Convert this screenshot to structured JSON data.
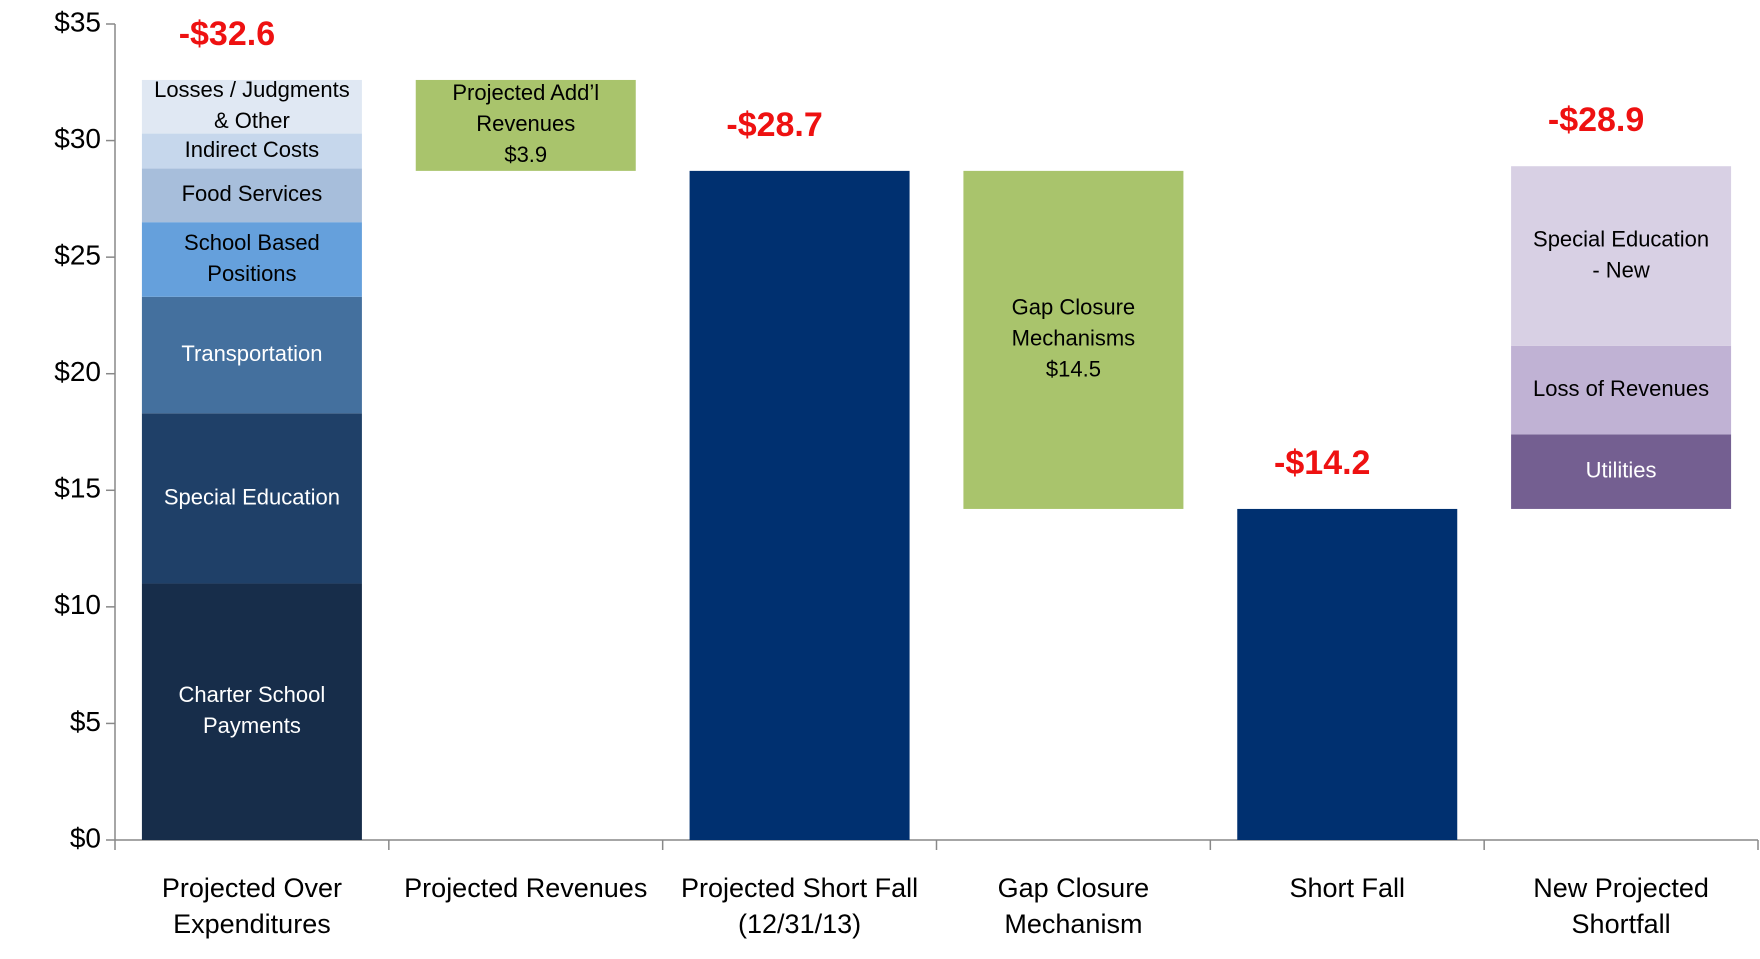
{
  "chart_data": {
    "type": "waterfall",
    "ylim": [
      0,
      35
    ],
    "yticks": [
      {
        "value": 0,
        "label": "$0"
      },
      {
        "value": 5,
        "label": "$5"
      },
      {
        "value": 10,
        "label": "$10"
      },
      {
        "value": 15,
        "label": "$15"
      },
      {
        "value": 20,
        "label": "$20"
      },
      {
        "value": 25,
        "label": "$25"
      },
      {
        "value": 30,
        "label": "$30"
      },
      {
        "value": 35,
        "label": "$35"
      }
    ],
    "columns": [
      {
        "category": [
          "Projected Over",
          "Expenditures"
        ],
        "kind": "increase",
        "total_label": "-$32.6",
        "segments": [
          {
            "label": [
              "Charter School",
              "Payments"
            ],
            "value": 11.0,
            "color": "#172d4a",
            "text_color": "#ffffff"
          },
          {
            "label": [
              "Special Education"
            ],
            "value": 7.3,
            "color": "#1f4068",
            "text_color": "#ffffff"
          },
          {
            "label": [
              "Transportation"
            ],
            "value": 5.0,
            "color": "#44709e",
            "text_color": "#ffffff"
          },
          {
            "label": [
              "School Based",
              "Positions"
            ],
            "value": 3.2,
            "color": "#65a0dc",
            "text_color": "#000000"
          },
          {
            "label": [
              "Food Services"
            ],
            "value": 2.3,
            "color": "#a7bedb",
            "text_color": "#000000"
          },
          {
            "label": [
              "Indirect Costs"
            ],
            "value": 1.5,
            "color": "#c6d7ec",
            "text_color": "#000000"
          },
          {
            "label": [
              "Losses / Judgments",
              "& Other"
            ],
            "value": 2.3,
            "color": "#e0e8f3",
            "text_color": "#000000"
          }
        ]
      },
      {
        "category": [
          "Projected Revenues"
        ],
        "kind": "decrease",
        "segments": [
          {
            "label": [
              "Projected Add’l",
              "Revenues"
            ],
            "value": 3.9,
            "value_label": "$3.9",
            "color": "#a9c46c",
            "text_color": "#000000"
          }
        ]
      },
      {
        "category": [
          "Projected Short Fall",
          "(12/31/13)"
        ],
        "kind": "total",
        "total_label": "-$28.7",
        "segments": [
          {
            "value": 28.7,
            "color": "#003070"
          }
        ]
      },
      {
        "category": [
          "Gap Closure",
          "Mechanism"
        ],
        "kind": "decrease",
        "segments": [
          {
            "label": [
              "Gap Closure",
              "Mechanisms"
            ],
            "value": 14.5,
            "value_label": "$14.5",
            "color": "#a9c46c",
            "text_color": "#000000"
          }
        ]
      },
      {
        "category": [
          "Short Fall"
        ],
        "kind": "total",
        "total_label": "-$14.2",
        "segments": [
          {
            "value": 14.2,
            "color": "#003070"
          }
        ]
      },
      {
        "category": [
          "New Projected",
          "Shortfall"
        ],
        "kind": "increase",
        "total_label": "-$28.9",
        "segments": [
          {
            "label": [
              "Utilities"
            ],
            "value": 3.2,
            "color": "#745f91",
            "text_color": "#ffffff"
          },
          {
            "label": [
              "Loss of Revenues"
            ],
            "value": 3.8,
            "color": "#c0b2d4",
            "text_color": "#000000"
          },
          {
            "label": [
              "Special Education",
              "- New"
            ],
            "value": 7.7,
            "color": "#d8d0e4",
            "text_color": "#000000"
          }
        ]
      }
    ]
  }
}
